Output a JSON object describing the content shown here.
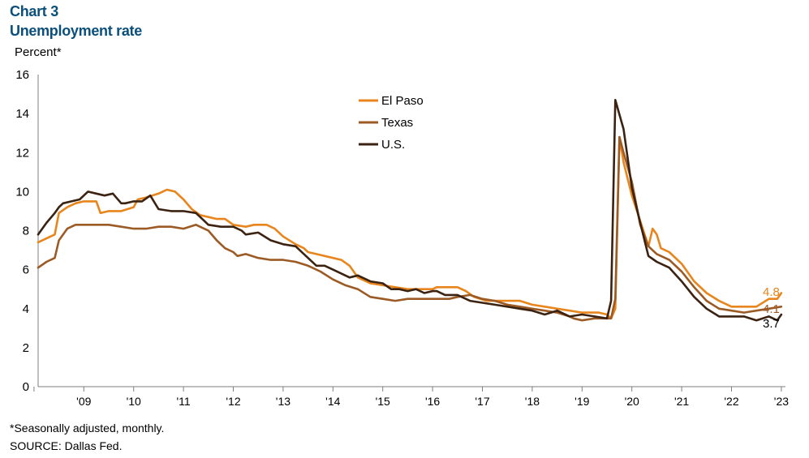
{
  "header": {
    "chart_number": "Chart 3",
    "title": "Unemployment rate"
  },
  "footer": {
    "note": "*Seasonally adjusted, monthly.",
    "source": "SOURCE: Dallas Fed."
  },
  "chart_data": {
    "type": "line",
    "title": "Unemployment rate",
    "ylabel": "Percent*",
    "xlabel": "",
    "ylim": [
      0,
      16
    ],
    "yticks": [
      0,
      2,
      4,
      6,
      8,
      10,
      12,
      14,
      16
    ],
    "xlim": [
      2008.583,
      2023.583
    ],
    "xtick_labels": [
      "'09",
      "'10",
      "'11",
      "'12",
      "'13",
      "'14",
      "'15",
      "'16",
      "'17",
      "'18",
      "'19",
      "'20",
      "'21",
      "'22",
      "'23"
    ],
    "grid": false,
    "legend_position": "top-center",
    "series": [
      {
        "name": "El Paso",
        "color": "#e8851c",
        "end_label": "4.8",
        "points": [
          [
            2008.583,
            7.4
          ],
          [
            2008.75,
            7.6
          ],
          [
            2008.917,
            7.8
          ],
          [
            2009.0,
            8.9
          ],
          [
            2009.167,
            9.2
          ],
          [
            2009.333,
            9.4
          ],
          [
            2009.5,
            9.5
          ],
          [
            2009.667,
            9.5
          ],
          [
            2009.75,
            9.5
          ],
          [
            2009.833,
            8.9
          ],
          [
            2010.0,
            9.0
          ],
          [
            2010.25,
            9.0
          ],
          [
            2010.5,
            9.2
          ],
          [
            2010.583,
            9.6
          ],
          [
            2010.75,
            9.7
          ],
          [
            2011.0,
            9.9
          ],
          [
            2011.083,
            10.0
          ],
          [
            2011.167,
            10.1
          ],
          [
            2011.333,
            10.0
          ],
          [
            2011.5,
            9.6
          ],
          [
            2011.667,
            9.1
          ],
          [
            2011.833,
            8.8
          ],
          [
            2012.0,
            8.7
          ],
          [
            2012.167,
            8.6
          ],
          [
            2012.333,
            8.6
          ],
          [
            2012.5,
            8.3
          ],
          [
            2012.75,
            8.2
          ],
          [
            2012.917,
            8.3
          ],
          [
            2013.167,
            8.3
          ],
          [
            2013.333,
            8.1
          ],
          [
            2013.5,
            7.7
          ],
          [
            2013.75,
            7.3
          ],
          [
            2013.917,
            7.1
          ],
          [
            2014.0,
            6.9
          ],
          [
            2014.167,
            6.8
          ],
          [
            2014.5,
            6.6
          ],
          [
            2014.667,
            6.5
          ],
          [
            2014.833,
            6.2
          ],
          [
            2015.0,
            5.6
          ],
          [
            2015.25,
            5.3
          ],
          [
            2015.5,
            5.2
          ],
          [
            2015.75,
            5.1
          ],
          [
            2016.0,
            5.0
          ],
          [
            2016.25,
            5.0
          ],
          [
            2016.5,
            5.0
          ],
          [
            2016.583,
            5.1
          ],
          [
            2016.75,
            5.1
          ],
          [
            2017.0,
            5.1
          ],
          [
            2017.167,
            4.9
          ],
          [
            2017.333,
            4.6
          ],
          [
            2017.583,
            4.4
          ],
          [
            2018.0,
            4.4
          ],
          [
            2018.25,
            4.4
          ],
          [
            2018.5,
            4.2
          ],
          [
            2018.75,
            4.1
          ],
          [
            2019.0,
            4.0
          ],
          [
            2019.25,
            3.9
          ],
          [
            2019.5,
            3.8
          ],
          [
            2019.833,
            3.8
          ],
          [
            2020.0,
            3.7
          ],
          [
            2020.083,
            3.5
          ],
          [
            2020.167,
            4.0
          ],
          [
            2020.25,
            12.8
          ],
          [
            2020.333,
            11.5
          ],
          [
            2020.5,
            9.8
          ],
          [
            2020.667,
            8.5
          ],
          [
            2020.833,
            7.2
          ],
          [
            2020.917,
            8.1
          ],
          [
            2021.0,
            7.8
          ],
          [
            2021.083,
            7.1
          ],
          [
            2021.25,
            6.9
          ],
          [
            2021.5,
            6.3
          ],
          [
            2021.75,
            5.4
          ],
          [
            2022.0,
            4.8
          ],
          [
            2022.25,
            4.4
          ],
          [
            2022.5,
            4.1
          ],
          [
            2022.75,
            4.1
          ],
          [
            2023.0,
            4.1
          ],
          [
            2023.25,
            4.5
          ],
          [
            2023.417,
            4.5
          ],
          [
            2023.5,
            4.8
          ]
        ]
      },
      {
        "name": "Texas",
        "color": "#9c5b25",
        "end_label": "4.1",
        "points": [
          [
            2008.583,
            6.1
          ],
          [
            2008.75,
            6.4
          ],
          [
            2008.917,
            6.6
          ],
          [
            2009.0,
            7.5
          ],
          [
            2009.167,
            8.1
          ],
          [
            2009.333,
            8.3
          ],
          [
            2009.5,
            8.3
          ],
          [
            2009.75,
            8.3
          ],
          [
            2010.0,
            8.3
          ],
          [
            2010.25,
            8.2
          ],
          [
            2010.5,
            8.1
          ],
          [
            2010.75,
            8.1
          ],
          [
            2011.0,
            8.2
          ],
          [
            2011.25,
            8.2
          ],
          [
            2011.5,
            8.1
          ],
          [
            2011.75,
            8.3
          ],
          [
            2012.0,
            8.0
          ],
          [
            2012.167,
            7.5
          ],
          [
            2012.333,
            7.1
          ],
          [
            2012.5,
            6.9
          ],
          [
            2012.583,
            6.7
          ],
          [
            2012.75,
            6.8
          ],
          [
            2013.0,
            6.6
          ],
          [
            2013.25,
            6.5
          ],
          [
            2013.5,
            6.5
          ],
          [
            2013.75,
            6.4
          ],
          [
            2014.0,
            6.2
          ],
          [
            2014.25,
            5.9
          ],
          [
            2014.5,
            5.5
          ],
          [
            2014.75,
            5.2
          ],
          [
            2015.0,
            5.0
          ],
          [
            2015.25,
            4.6
          ],
          [
            2015.5,
            4.5
          ],
          [
            2015.75,
            4.4
          ],
          [
            2016.0,
            4.5
          ],
          [
            2016.25,
            4.5
          ],
          [
            2016.5,
            4.5
          ],
          [
            2016.667,
            4.5
          ],
          [
            2016.833,
            4.5
          ],
          [
            2017.0,
            4.6
          ],
          [
            2017.25,
            4.7
          ],
          [
            2017.5,
            4.5
          ],
          [
            2017.75,
            4.4
          ],
          [
            2018.0,
            4.2
          ],
          [
            2018.25,
            4.1
          ],
          [
            2018.5,
            4.0
          ],
          [
            2018.75,
            3.9
          ],
          [
            2019.0,
            3.8
          ],
          [
            2019.25,
            3.6
          ],
          [
            2019.333,
            3.5
          ],
          [
            2019.5,
            3.4
          ],
          [
            2019.75,
            3.5
          ],
          [
            2020.0,
            3.5
          ],
          [
            2020.083,
            3.5
          ],
          [
            2020.167,
            4.5
          ],
          [
            2020.25,
            12.8
          ],
          [
            2020.333,
            12.0
          ],
          [
            2020.5,
            10.5
          ],
          [
            2020.667,
            8.3
          ],
          [
            2020.833,
            7.2
          ],
          [
            2021.0,
            6.8
          ],
          [
            2021.25,
            6.5
          ],
          [
            2021.5,
            5.9
          ],
          [
            2021.75,
            5.1
          ],
          [
            2022.0,
            4.4
          ],
          [
            2022.25,
            4.0
          ],
          [
            2022.5,
            3.9
          ],
          [
            2022.75,
            3.8
          ],
          [
            2023.0,
            3.9
          ],
          [
            2023.25,
            4.0
          ],
          [
            2023.5,
            4.1
          ]
        ]
      },
      {
        "name": "U.S.",
        "color": "#3b2211",
        "end_label": "3.7",
        "points": [
          [
            2008.583,
            7.8
          ],
          [
            2008.75,
            8.4
          ],
          [
            2008.917,
            8.9
          ],
          [
            2009.0,
            9.2
          ],
          [
            2009.083,
            9.4
          ],
          [
            2009.25,
            9.5
          ],
          [
            2009.417,
            9.6
          ],
          [
            2009.5,
            9.8
          ],
          [
            2009.583,
            10.0
          ],
          [
            2009.75,
            9.9
          ],
          [
            2009.917,
            9.8
          ],
          [
            2010.083,
            9.9
          ],
          [
            2010.25,
            9.4
          ],
          [
            2010.333,
            9.4
          ],
          [
            2010.5,
            9.5
          ],
          [
            2010.667,
            9.5
          ],
          [
            2010.833,
            9.8
          ],
          [
            2011.0,
            9.1
          ],
          [
            2011.25,
            9.0
          ],
          [
            2011.5,
            9.0
          ],
          [
            2011.75,
            8.9
          ],
          [
            2012.0,
            8.3
          ],
          [
            2012.25,
            8.2
          ],
          [
            2012.5,
            8.2
          ],
          [
            2012.667,
            8.0
          ],
          [
            2012.75,
            7.8
          ],
          [
            2013.0,
            7.9
          ],
          [
            2013.25,
            7.5
          ],
          [
            2013.5,
            7.3
          ],
          [
            2013.75,
            7.2
          ],
          [
            2014.0,
            6.6
          ],
          [
            2014.167,
            6.2
          ],
          [
            2014.333,
            6.2
          ],
          [
            2014.5,
            6.0
          ],
          [
            2014.667,
            5.8
          ],
          [
            2014.833,
            5.6
          ],
          [
            2015.0,
            5.7
          ],
          [
            2015.25,
            5.4
          ],
          [
            2015.5,
            5.3
          ],
          [
            2015.667,
            5.0
          ],
          [
            2015.833,
            5.0
          ],
          [
            2016.0,
            4.9
          ],
          [
            2016.167,
            5.0
          ],
          [
            2016.333,
            4.8
          ],
          [
            2016.5,
            4.9
          ],
          [
            2016.583,
            4.9
          ],
          [
            2016.75,
            4.7
          ],
          [
            2017.0,
            4.7
          ],
          [
            2017.25,
            4.4
          ],
          [
            2017.5,
            4.3
          ],
          [
            2017.75,
            4.2
          ],
          [
            2018.0,
            4.1
          ],
          [
            2018.25,
            4.0
          ],
          [
            2018.5,
            3.9
          ],
          [
            2018.75,
            3.7
          ],
          [
            2019.0,
            3.9
          ],
          [
            2019.25,
            3.6
          ],
          [
            2019.5,
            3.7
          ],
          [
            2019.75,
            3.6
          ],
          [
            2020.0,
            3.5
          ],
          [
            2020.083,
            4.4
          ],
          [
            2020.167,
            14.7
          ],
          [
            2020.333,
            13.2
          ],
          [
            2020.5,
            10.2
          ],
          [
            2020.667,
            8.4
          ],
          [
            2020.833,
            6.7
          ],
          [
            2021.0,
            6.4
          ],
          [
            2021.25,
            6.1
          ],
          [
            2021.5,
            5.4
          ],
          [
            2021.75,
            4.6
          ],
          [
            2022.0,
            4.0
          ],
          [
            2022.25,
            3.6
          ],
          [
            2022.5,
            3.6
          ],
          [
            2022.75,
            3.6
          ],
          [
            2023.0,
            3.4
          ],
          [
            2023.25,
            3.6
          ],
          [
            2023.417,
            3.4
          ],
          [
            2023.5,
            3.7
          ]
        ]
      }
    ]
  }
}
